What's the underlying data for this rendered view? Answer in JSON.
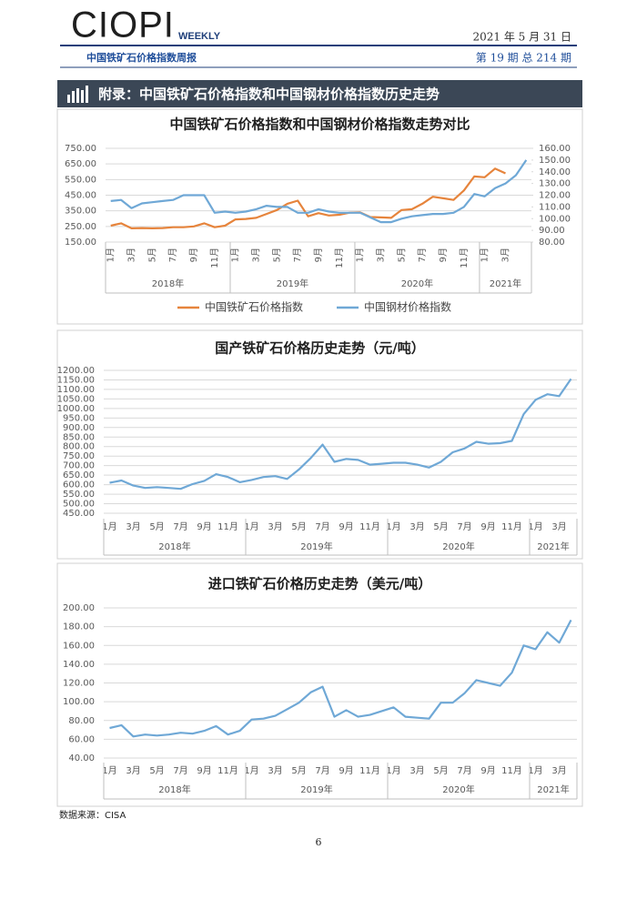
{
  "header": {
    "logo": "CIOPI",
    "logo_tag": "WEEKLY",
    "subtitle": "中国铁矿石价格指数周报",
    "date": "2021 年 5 月 31 日",
    "issue": "第 19 期 总 214 期"
  },
  "section_title": "附录：中国铁矿石价格指数和中国钢材价格指数历史走势",
  "chart_data": [
    {
      "type": "line",
      "title": "中国铁矿石价格指数和中国钢材价格指数走势对比",
      "categories": [
        "1月",
        null,
        "3月",
        null,
        "5月",
        null,
        "7月",
        null,
        "9月",
        null,
        "11月",
        null,
        "1月",
        null,
        "3月",
        null,
        "5月",
        null,
        "7月",
        null,
        "9月",
        null,
        "11月",
        null,
        "1月",
        null,
        "3月",
        null,
        "5月",
        null,
        "7月",
        null,
        "9月",
        null,
        "11月",
        null,
        "1月",
        null,
        "3月",
        null,
        null
      ],
      "groups": [
        {
          "label": "2018年",
          "count": 12
        },
        {
          "label": "2019年",
          "count": 12
        },
        {
          "label": "2020年",
          "count": 12
        },
        {
          "label": "2021年",
          "count": 5
        }
      ],
      "series": [
        {
          "name": "中国铁矿石价格指数",
          "color": "#e6843c",
          "axis": "y",
          "values": [
            255,
            270,
            238,
            240,
            238,
            240,
            245,
            245,
            250,
            270,
            245,
            255,
            295,
            298,
            305,
            330,
            355,
            395,
            415,
            315,
            335,
            320,
            325,
            338,
            340,
            310,
            308,
            305,
            355,
            360,
            395,
            440,
            430,
            420,
            480,
            570,
            565,
            620,
            590,
            null,
            null
          ]
        },
        {
          "name": "中国钢材价格指数",
          "color": "#6fa8d6",
          "axis": "y2",
          "values": [
            115,
            116,
            109,
            113,
            114,
            115,
            116,
            120,
            120,
            120,
            105,
            106,
            105,
            106,
            108,
            111,
            110,
            110,
            105,
            105,
            108,
            106,
            105,
            105,
            105,
            101,
            97,
            97,
            100,
            102,
            103,
            104,
            104,
            105,
            110,
            121,
            119,
            126,
            130,
            137,
            150
          ]
        }
      ],
      "ylim": [
        150,
        750
      ],
      "yticks": [
        {
          "value": 150,
          "label": "150.00"
        },
        {
          "value": 250,
          "label": "250.00"
        },
        {
          "value": 350,
          "label": "350.00"
        },
        {
          "value": 450,
          "label": "450.00"
        },
        {
          "value": 550,
          "label": "550.00"
        },
        {
          "value": 650,
          "label": "650.00"
        },
        {
          "value": 750,
          "label": "750.00"
        }
      ],
      "y2lim": [
        80,
        160
      ],
      "y2ticks": [
        {
          "value": 80,
          "label": "80.00"
        },
        {
          "value": 90,
          "label": "90.00"
        },
        {
          "value": 100,
          "label": "100.00"
        },
        {
          "value": 110,
          "label": "110.00"
        },
        {
          "value": 120,
          "label": "120.00"
        },
        {
          "value": 130,
          "label": "130.00"
        },
        {
          "value": 140,
          "label": "140.00"
        },
        {
          "value": 150,
          "label": "150.00"
        },
        {
          "value": 160,
          "label": "160.00"
        }
      ],
      "grid": true,
      "legend": "bottom"
    },
    {
      "type": "line",
      "title": "国产铁矿石价格历史走势（元/吨）",
      "categories": [
        "1月",
        null,
        "3月",
        null,
        "5月",
        null,
        "7月",
        null,
        "9月",
        null,
        "11月",
        null,
        "1月",
        null,
        "3月",
        null,
        "5月",
        null,
        "7月",
        null,
        "9月",
        null,
        "11月",
        null,
        "1月",
        null,
        "3月",
        null,
        "5月",
        null,
        "7月",
        null,
        "9月",
        null,
        "11月",
        null,
        "1月",
        null,
        "3月",
        null
      ],
      "groups": [
        {
          "label": "2018年",
          "count": 12
        },
        {
          "label": "2019年",
          "count": 12
        },
        {
          "label": "2020年",
          "count": 12
        },
        {
          "label": "2021年",
          "count": 4
        }
      ],
      "color": "#6fa8d6",
      "values": [
        610,
        622,
        595,
        583,
        587,
        583,
        578,
        603,
        620,
        655,
        640,
        613,
        625,
        640,
        645,
        630,
        680,
        740,
        810,
        720,
        735,
        730,
        705,
        710,
        715,
        715,
        705,
        690,
        720,
        770,
        790,
        825,
        815,
        818,
        830,
        970,
        1045,
        1075,
        1065,
        1155
      ],
      "ylim": [
        450,
        1200
      ],
      "yticks": [
        {
          "value": 450,
          "label": "450.00"
        },
        {
          "value": 500,
          "label": "500.00"
        },
        {
          "value": 550,
          "label": "550.00"
        },
        {
          "value": 600,
          "label": "600.00"
        },
        {
          "value": 650,
          "label": "650.00"
        },
        {
          "value": 700,
          "label": "700.00"
        },
        {
          "value": 750,
          "label": "750.00"
        },
        {
          "value": 800,
          "label": "800.00"
        },
        {
          "value": 850,
          "label": "850.00"
        },
        {
          "value": 900,
          "label": "900.00"
        },
        {
          "value": 950,
          "label": "950.00"
        },
        {
          "value": 1000,
          "label": "1000.00"
        },
        {
          "value": 1050,
          "label": "1050.00"
        },
        {
          "value": 1100,
          "label": "1100.00"
        },
        {
          "value": 1150,
          "label": "1150.00"
        },
        {
          "value": 1200,
          "label": "1200.00"
        }
      ],
      "grid": true
    },
    {
      "type": "line",
      "title": "进口铁矿石价格历史走势（美元/吨）",
      "categories": [
        "1月",
        null,
        "3月",
        null,
        "5月",
        null,
        "7月",
        null,
        "9月",
        null,
        "11月",
        null,
        "1月",
        null,
        "3月",
        null,
        "5月",
        null,
        "7月",
        null,
        "9月",
        null,
        "11月",
        null,
        "1月",
        null,
        "3月",
        null,
        "5月",
        null,
        "7月",
        null,
        "9月",
        null,
        "11月",
        null,
        "1月",
        null,
        "3月",
        null
      ],
      "groups": [
        {
          "label": "2018年",
          "count": 12
        },
        {
          "label": "2019年",
          "count": 12
        },
        {
          "label": "2020年",
          "count": 12
        },
        {
          "label": "2021年",
          "count": 4
        }
      ],
      "color": "#6fa8d6",
      "values": [
        72,
        75,
        63,
        65,
        64,
        65,
        67,
        66,
        69,
        74,
        65,
        69,
        81,
        82,
        85,
        92,
        99,
        110,
        116,
        84,
        91,
        84,
        86,
        90,
        94,
        84,
        83,
        82,
        99,
        99,
        109,
        123,
        120,
        117,
        131,
        160,
        156,
        174,
        163,
        187
      ],
      "ylim": [
        40,
        200
      ],
      "yticks": [
        {
          "value": 40,
          "label": "40.00"
        },
        {
          "value": 60,
          "label": "60.00"
        },
        {
          "value": 80,
          "label": "80.00"
        },
        {
          "value": 100,
          "label": "100.00"
        },
        {
          "value": 120,
          "label": "120.00"
        },
        {
          "value": 140,
          "label": "140.00"
        },
        {
          "value": 160,
          "label": "160.00"
        },
        {
          "value": 180,
          "label": "180.00"
        },
        {
          "value": 200,
          "label": "200.00"
        }
      ],
      "grid": true
    }
  ],
  "source": "数据来源：CISA",
  "page_number": "6"
}
